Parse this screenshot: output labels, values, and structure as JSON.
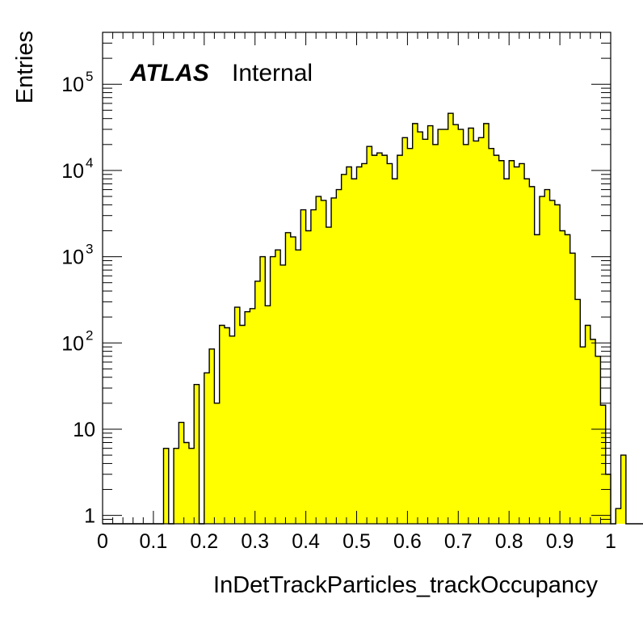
{
  "chart_data": {
    "type": "bar",
    "style": "step-filled histogram",
    "title": "",
    "xlabel": "InDetTrackParticles_trackOccupancy",
    "ylabel": "Entries",
    "xlim": [
      0,
      1
    ],
    "ylim": [
      0.8,
      400000
    ],
    "yscale": "log",
    "grid": false,
    "legend": "none",
    "annotation": {
      "bold": "ATLAS",
      "text": "Internal",
      "placement": "top-left"
    },
    "x_ticks": [
      "0",
      "0.1",
      "0.2",
      "0.3",
      "0.4",
      "0.5",
      "0.6",
      "0.7",
      "0.8",
      "0.9",
      "1"
    ],
    "y_ticks": [
      {
        "value": 1,
        "label": "1",
        "sup": ""
      },
      {
        "value": 10,
        "label": "10",
        "sup": ""
      },
      {
        "value": 100,
        "label": "10",
        "sup": "2"
      },
      {
        "value": 1000,
        "label": "10",
        "sup": "3"
      },
      {
        "value": 10000,
        "label": "10",
        "sup": "4"
      },
      {
        "value": 100000,
        "label": "10",
        "sup": "5"
      }
    ],
    "bin_width": 0.01,
    "bin_start": 0.0,
    "values": [
      0,
      0,
      0,
      0,
      0,
      0,
      0,
      0,
      0,
      0,
      0,
      0,
      6,
      0,
      6,
      12,
      7,
      6,
      33,
      0,
      45,
      85,
      20,
      160,
      150,
      120,
      260,
      160,
      230,
      250,
      520,
      1000,
      270,
      1000,
      1200,
      800,
      1900,
      1700,
      1200,
      3500,
      2000,
      3500,
      5000,
      4500,
      2200,
      4800,
      6000,
      9000,
      11000,
      8000,
      11000,
      12000,
      19000,
      15000,
      16000,
      15000,
      12000,
      8000,
      15000,
      24000,
      18000,
      35000,
      28000,
      23000,
      33000,
      20000,
      30000,
      30000,
      46000,
      34000,
      30000,
      20000,
      31000,
      22000,
      24000,
      35000,
      18000,
      15000,
      13000,
      8000,
      13000,
      11000,
      12000,
      8000,
      6500,
      1800,
      5000,
      6000,
      4500,
      4000,
      2000,
      1800,
      1100,
      320,
      90,
      160,
      110,
      70,
      19,
      3,
      0,
      1.2,
      5,
      0,
      0,
      0,
      0,
      0,
      0,
      0
    ]
  },
  "colors": {
    "fill": "#ffff00",
    "stroke": "#000000"
  }
}
